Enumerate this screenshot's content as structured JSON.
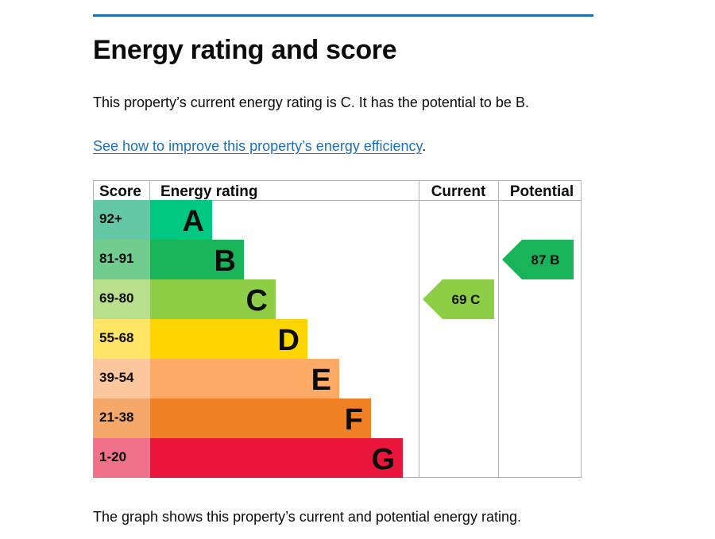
{
  "page": {
    "title": "Energy rating and score",
    "summary": "This property’s current energy rating is C. It has the potential to be B.",
    "link_text": "See how to improve this property’s energy efficiency",
    "link_suffix": ".",
    "caption": "The graph shows this property’s current and potential energy rating."
  },
  "colors": {
    "rule": "#1d70b8",
    "link": "#1d70b8",
    "grid": "#b1b4b6"
  },
  "chart_data": {
    "type": "table",
    "headers": {
      "score": "Score",
      "rating": "Energy rating",
      "current": "Current",
      "potential": "Potential"
    },
    "bands": [
      {
        "letter": "A",
        "score": "92+",
        "color": "#00c781",
        "score_bg": "#64c7a5"
      },
      {
        "letter": "B",
        "score": "81-91",
        "color": "#19b459",
        "score_bg": "#6fcb8e"
      },
      {
        "letter": "C",
        "score": "69-80",
        "color": "#8dce46",
        "score_bg": "#b8e08c"
      },
      {
        "letter": "D",
        "score": "55-68",
        "color": "#ffd500",
        "score_bg": "#ffe466"
      },
      {
        "letter": "E",
        "score": "39-54",
        "color": "#fcaa65",
        "score_bg": "#fdc79e"
      },
      {
        "letter": "F",
        "score": "21-38",
        "color": "#ef8023",
        "score_bg": "#f5a86a"
      },
      {
        "letter": "G",
        "score": "1-20",
        "color": "#e9153b",
        "score_bg": "#f0718a"
      }
    ],
    "current": {
      "score": 69,
      "band": "C",
      "label": "69 C",
      "color": "#8dce46"
    },
    "potential": {
      "score": 87,
      "band": "B",
      "label": "87 B",
      "color": "#19b459"
    }
  }
}
